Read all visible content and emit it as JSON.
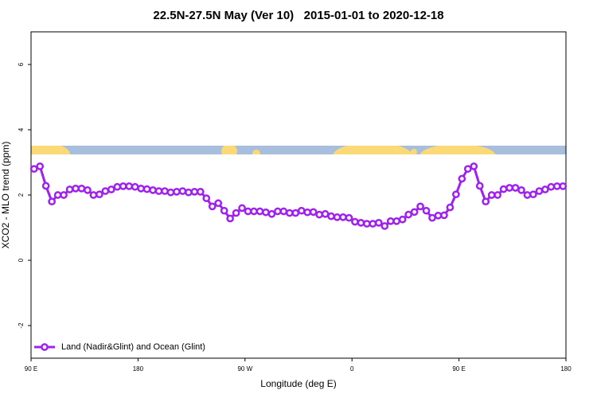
{
  "chart_data": {
    "type": "line",
    "title": "22.5N-27.5N May (Ver 10)   2015-01-01 to 2020-12-18",
    "xlabel": "Longitude (deg E)",
    "ylabel": "XCO2 - MLO trend (ppm)",
    "xlim": [
      90,
      540
    ],
    "ylim": [
      -3,
      7
    ],
    "xticks": [
      {
        "value": 90,
        "label": "90 E"
      },
      180,
      {
        "value": 270,
        "label": "90 W"
      },
      {
        "value": 360,
        "label": "0"
      },
      {
        "value": 450,
        "label": "90 E"
      },
      {
        "value": 540,
        "label": "180"
      }
    ],
    "yticks": [
      -2,
      0,
      2,
      4,
      6
    ],
    "legend": "bottom-left",
    "x": [
      92.5,
      97.5,
      102.5,
      107.5,
      112.5,
      117.5,
      122.5,
      127.5,
      132.5,
      137.5,
      142.5,
      147.5,
      152.5,
      157.5,
      162.5,
      167.5,
      172.5,
      177.5,
      182.5,
      187.5,
      192.5,
      197.5,
      202.5,
      207.5,
      212.5,
      217.5,
      222.5,
      227.5,
      232.5,
      237.5,
      242.5,
      247.5,
      252.5,
      257.5,
      262.5,
      267.5,
      272.5,
      277.5,
      282.5,
      287.5,
      292.5,
      297.5,
      302.5,
      307.5,
      312.5,
      317.5,
      322.5,
      327.5,
      332.5,
      337.5,
      342.5,
      347.5,
      352.5,
      357.5,
      362.5,
      367.5,
      372.5,
      377.5,
      382.5,
      387.5,
      392.5,
      397.5,
      402.5,
      407.5,
      412.5,
      417.5,
      422.5,
      427.5,
      432.5,
      437.5,
      442.5,
      447.5,
      452.5,
      457.5,
      462.5,
      467.5,
      472.5,
      477.5,
      482.5,
      487.5,
      492.5,
      497.5,
      502.5,
      507.5,
      512.5,
      517.5,
      522.5,
      527.5,
      532.5,
      537.5
    ],
    "series": [
      {
        "name": "Land (Nadir&Glint) and Ocean (Glint)",
        "color": "#a020f0",
        "values": [
          2.8,
          2.88,
          2.28,
          1.8,
          2.0,
          2.0,
          2.17,
          2.2,
          2.2,
          2.15,
          2.0,
          2.02,
          2.12,
          2.17,
          2.25,
          2.27,
          2.27,
          2.25,
          2.2,
          2.18,
          2.15,
          2.12,
          2.12,
          2.08,
          2.1,
          2.12,
          2.08,
          2.1,
          2.1,
          1.9,
          1.65,
          1.75,
          1.52,
          1.28,
          1.45,
          1.6,
          1.5,
          1.5,
          1.5,
          1.47,
          1.42,
          1.5,
          1.5,
          1.45,
          1.45,
          1.52,
          1.47,
          1.48,
          1.4,
          1.42,
          1.35,
          1.32,
          1.32,
          1.3,
          1.18,
          1.15,
          1.12,
          1.12,
          1.15,
          1.05,
          1.2,
          1.2,
          1.25,
          1.4,
          1.48,
          1.65,
          1.52,
          1.3,
          1.37,
          1.38,
          1.62,
          2.02,
          2.5,
          2.8,
          2.88,
          2.28,
          1.8,
          2.0,
          2.0,
          2.18,
          2.22,
          2.22,
          2.15,
          2.0,
          2.02,
          2.12,
          2.17,
          2.25,
          2.27,
          2.27
        ]
      }
    ]
  }
}
